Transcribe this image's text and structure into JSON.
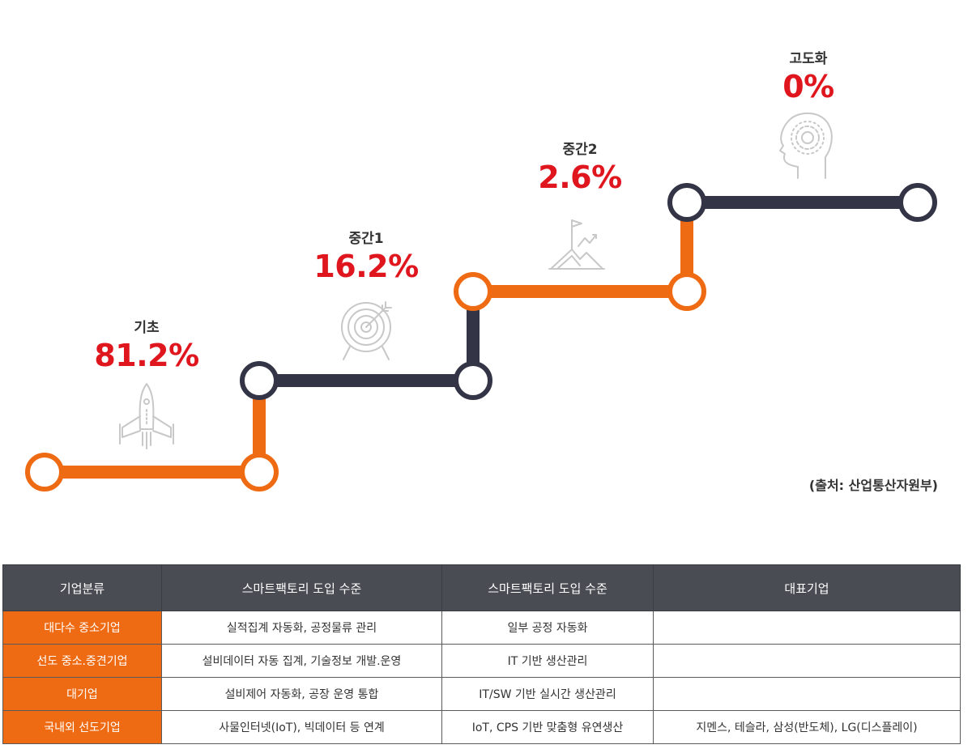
{
  "stages": [
    {
      "name": "기초",
      "percent": "81.2%",
      "icon": "rocket-icon"
    },
    {
      "name": "중간1",
      "percent": "16.2%",
      "icon": "target-icon"
    },
    {
      "name": "중간2",
      "percent": "2.6%",
      "icon": "mountain-flag-icon"
    },
    {
      "name": "고도화",
      "percent": "0%",
      "icon": "head-gear-icon"
    }
  ],
  "source": "(출처: 산업통산자원부)",
  "colors": {
    "accent": "#ef6b13",
    "navy": "#333547",
    "percent": "#e0161e",
    "header": "#4a4c54"
  },
  "table": {
    "headers": [
      "기업분류",
      "스마트팩토리 도입 수준",
      "스마트팩토리 도입 수준",
      "대표기업"
    ],
    "rows": [
      [
        "대다수 중소기업",
        "실적집계 자동화, 공정물류 관리",
        "일부 공정 자동화",
        ""
      ],
      [
        "선도 중소.중견기업",
        "설비데이터 자동 집계, 기술정보 개발.운영",
        "IT 기반 생산관리",
        ""
      ],
      [
        "대기업",
        "설비제어 자동화, 공장 운영 통합",
        "IT/SW 기반 실시간 생산관리",
        ""
      ],
      [
        "국내외 선도기업",
        "사물인터넷(IoT), 빅데이터 등 연계",
        "IoT, CPS 기반 맞춤형 유연생산",
        "지멘스, 테슬라, 삼성(반도체), LG(디스플레이)"
      ]
    ]
  }
}
